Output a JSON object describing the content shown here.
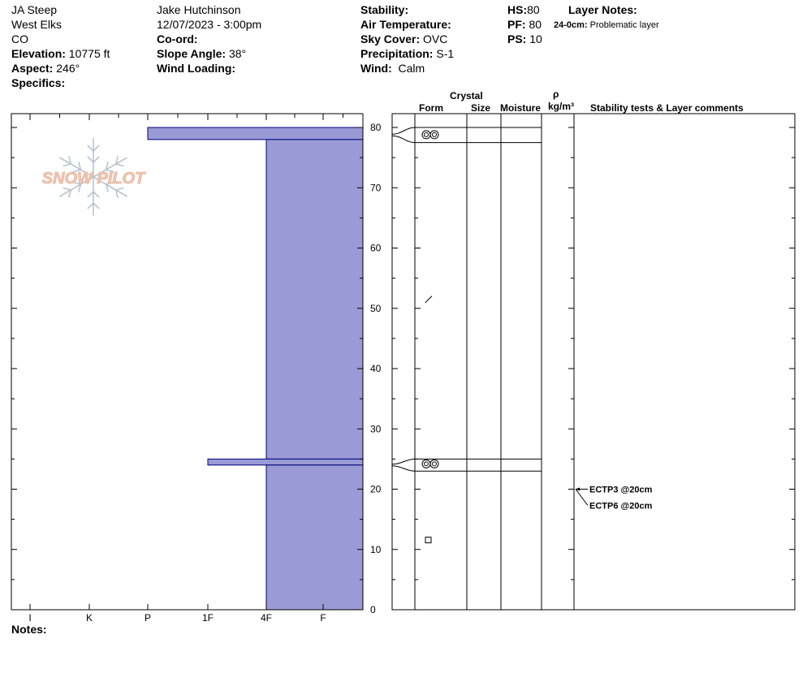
{
  "header": {
    "location": "JA Steep",
    "range": "West Elks",
    "state": "CO",
    "elevation_label": "Elevation:",
    "elevation_value": "10775 ft",
    "aspect_label": "Aspect:",
    "aspect_value": "246°",
    "specifics_label": "Specifics:",
    "observer": "Jake Hutchinson",
    "datetime": "12/07/2023 - 3:00pm",
    "coord_label": "Co-ord:",
    "slope_label": "Slope Angle:",
    "slope_value": "38°",
    "wind_loading_label": "Wind Loading:",
    "stability_label": "Stability:",
    "air_temp_label": "Air Temperature:",
    "sky_label": "Sky Cover:",
    "sky_value": "OVC",
    "precip_label": "Precipitation:",
    "precip_value": "S-1",
    "wind_label": "Wind:",
    "wind_value": "Calm",
    "hs_label": "HS:",
    "hs_value": "80",
    "pf_label": "PF:",
    "pf_value": "80",
    "ps_label": "PS:",
    "ps_value": "10",
    "layer_notes_label": "Layer Notes:",
    "layer_note_range": "24-0cm:",
    "layer_note_text": "Problematic layer"
  },
  "logo_text": "SNOW PILOT",
  "notes_label": "Notes:",
  "colors": {
    "hardness_fill": "#9a9ad6",
    "hardness_stroke": "#00007f",
    "logo_text": "#f0c8b4",
    "logo_flake": "#b8c4d0"
  },
  "columns": {
    "crystal": "Crystal",
    "form": "Form",
    "size": "Size",
    "moisture": "Moisture",
    "rho": "ρ",
    "density_unit": "kg/m³",
    "stability": "Stability tests & Layer comments"
  },
  "chart_data": {
    "type": "bar",
    "orientation": "horizontal",
    "x_categories": [
      "I",
      "K",
      "P",
      "1F",
      "4F",
      "F"
    ],
    "y_range": [
      0,
      80
    ],
    "y_ticks": [
      0,
      10,
      20,
      30,
      40,
      50,
      60,
      70,
      80
    ],
    "y_unit": "cm",
    "hardness_layers": [
      {
        "top": 80,
        "bottom": 78,
        "hardness": "P"
      },
      {
        "top": 78,
        "bottom": 25,
        "hardness": "4F"
      },
      {
        "top": 25,
        "bottom": 24,
        "hardness": "1F"
      },
      {
        "top": 24,
        "bottom": 0,
        "hardness": "4F"
      }
    ],
    "crystal_layers": [
      {
        "top": 80,
        "bottom": 77.5,
        "form": "surface-hoar"
      },
      {
        "top": 25,
        "bottom": 23,
        "form": "surface-hoar"
      }
    ],
    "form_symbols": [
      {
        "depth": 78.8,
        "symbol": "surface-hoar"
      },
      {
        "depth": 51.5,
        "symbol": "precipitation-particles"
      },
      {
        "depth": 24.2,
        "symbol": "surface-hoar"
      },
      {
        "depth": 11.5,
        "symbol": "faceted-crystals"
      }
    ],
    "stability_tests": [
      {
        "depth": 20,
        "label": "ECTP3 @20cm"
      },
      {
        "depth": 20,
        "label": "ECTP6 @20cm"
      }
    ]
  }
}
